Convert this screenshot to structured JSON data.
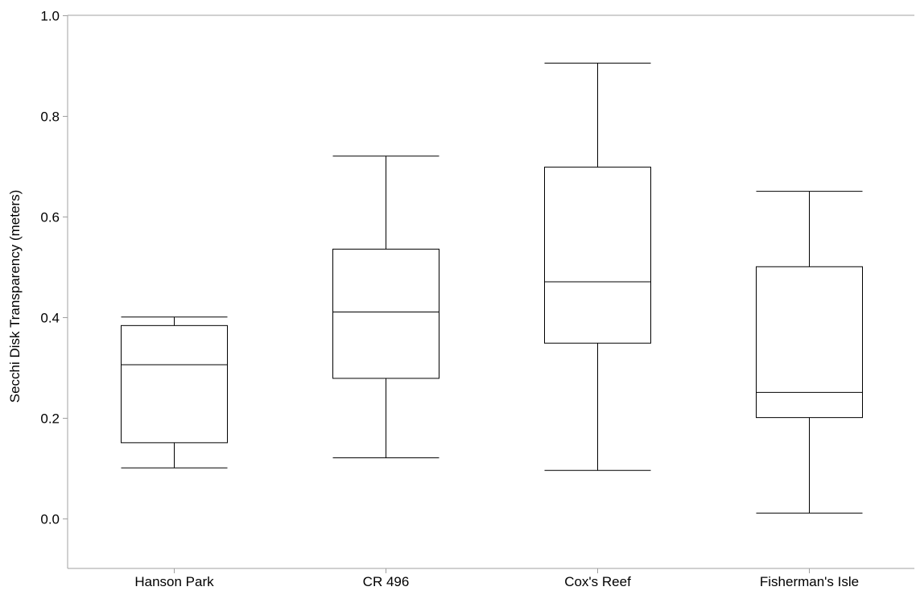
{
  "chart_data": {
    "type": "box",
    "title": "",
    "xlabel": "",
    "ylabel": "Secchi Disk Transparency (meters)",
    "ylim": [
      -0.1,
      1.0
    ],
    "yticks": [
      0.0,
      0.2,
      0.4,
      0.6,
      0.8,
      1.0
    ],
    "ytick_labels": [
      "0.0",
      "0.2",
      "0.4",
      "0.6",
      "0.8",
      "1.0"
    ],
    "grid": false,
    "categories": [
      "Hanson Park",
      "CR 496",
      "Cox's Reef",
      "Fisherman's Isle"
    ],
    "boxes": [
      {
        "category": "Hanson Park",
        "whisker_low": 0.1,
        "q1": 0.15,
        "median": 0.305,
        "q3": 0.383,
        "whisker_high": 0.4
      },
      {
        "category": "CR 496",
        "whisker_low": 0.12,
        "q1": 0.278,
        "median": 0.41,
        "q3": 0.535,
        "whisker_high": 0.72
      },
      {
        "category": "Cox's Reef",
        "whisker_low": 0.095,
        "q1": 0.348,
        "median": 0.47,
        "q3": 0.698,
        "whisker_high": 0.905
      },
      {
        "category": "Fisherman's Isle",
        "whisker_low": 0.01,
        "q1": 0.2,
        "median": 0.25,
        "q3": 0.5,
        "whisker_high": 0.65
      }
    ],
    "colors": {
      "line": "#000000",
      "frame": "#a0a0a0",
      "background": "#ffffff"
    }
  }
}
